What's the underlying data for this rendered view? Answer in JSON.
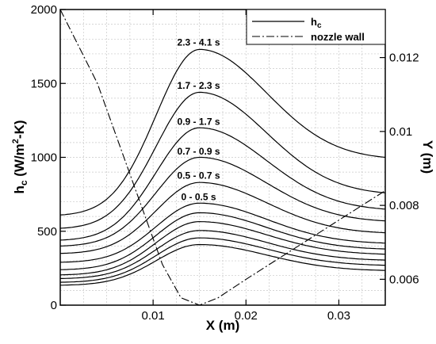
{
  "chart_data": {
    "type": "line",
    "grid": true,
    "xlabel": "X (m)",
    "ylabel_left": "h",
    "ylabel_left_sub": "c",
    "ylabel_left_unit": " (W/m",
    "ylabel_left_sup": "2",
    "ylabel_left_unit_end": "-K)",
    "ylabel_right": "Y (m)",
    "xlim": [
      0,
      0.035
    ],
    "ylim_left": [
      0,
      2000
    ],
    "ylim_right": [
      0.0053,
      0.0133
    ],
    "x_ticks": [
      0.01,
      0.02,
      0.03
    ],
    "y_left_ticks": [
      0,
      500,
      1000,
      1500,
      2000
    ],
    "y_right_ticks": [
      0.006,
      0.008,
      0.01,
      0.012
    ],
    "legend": {
      "position": "top-right",
      "entries": [
        {
          "label": "h",
          "sub": "c",
          "style": "solid"
        },
        {
          "label": "nozzle wall",
          "style": "dash-dot"
        }
      ]
    },
    "peak_x": 0.015,
    "hc_series": [
      {
        "start": 135,
        "peak": 410,
        "end": 235
      },
      {
        "start": 155,
        "peak": 455,
        "end": 270
      },
      {
        "start": 180,
        "peak": 505,
        "end": 305
      },
      {
        "start": 205,
        "peak": 565,
        "end": 345
      },
      {
        "start": 240,
        "peak": 625,
        "end": 380
      },
      {
        "start": 290,
        "peak": 690,
        "end": 420
      },
      {
        "start": 350,
        "peak": 830,
        "end": 490
      },
      {
        "start": 400,
        "peak": 1000,
        "end": 570
      },
      {
        "start": 440,
        "peak": 1200,
        "end": 650
      },
      {
        "start": 520,
        "peak": 1440,
        "end": 760
      },
      {
        "start": 610,
        "peak": 1730,
        "end": 1000
      }
    ],
    "band_labels": [
      {
        "text": "2.3 - 4.1 s",
        "x": 0.0149,
        "y": 1755
      },
      {
        "text": "1.7 - 2.3 s",
        "x": 0.0149,
        "y": 1465
      },
      {
        "text": "0.9 - 1.7 s",
        "x": 0.0149,
        "y": 1220
      },
      {
        "text": "0.7 - 0.9 s",
        "x": 0.0149,
        "y": 1020
      },
      {
        "text": "0.5 - 0.7 s",
        "x": 0.0149,
        "y": 855
      },
      {
        "text": "0 - 0.5 s",
        "x": 0.0149,
        "y": 710
      }
    ],
    "nozzle_wall": {
      "x": [
        0,
        0.004,
        0.008,
        0.011,
        0.013,
        0.015,
        0.017,
        0.02,
        0.025,
        0.03,
        0.035
      ],
      "y": [
        0.0133,
        0.0113,
        0.0085,
        0.0064,
        0.0055,
        0.0053,
        0.0055,
        0.006,
        0.0068,
        0.0076,
        0.0084
      ]
    }
  }
}
